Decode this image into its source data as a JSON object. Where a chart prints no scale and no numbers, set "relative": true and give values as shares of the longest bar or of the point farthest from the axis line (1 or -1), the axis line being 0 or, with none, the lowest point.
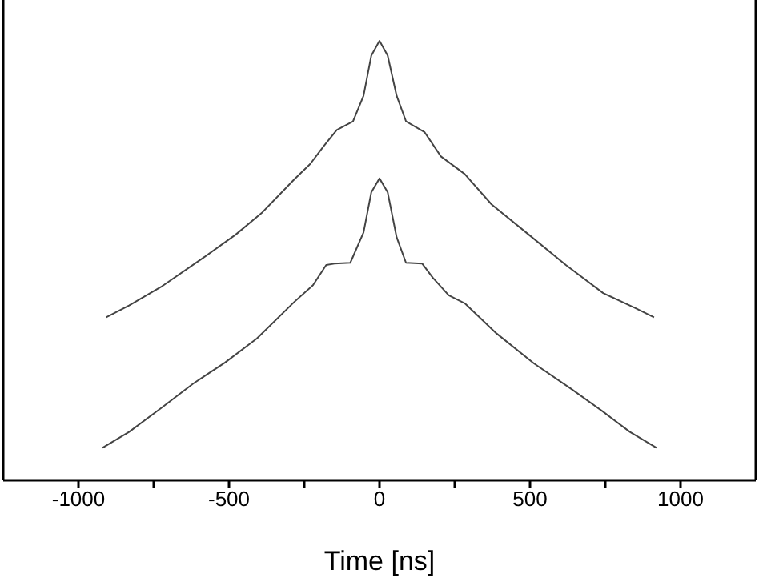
{
  "chart_data": {
    "type": "line",
    "xlabel": "Time [ns]",
    "relative": true,
    "xlim": [
      -1250,
      1250
    ],
    "xticks": [
      -1000,
      {
        "value": -750,
        "label": null
      },
      -500,
      {
        "value": -250,
        "label": null
      },
      0,
      {
        "value": 250,
        "label": null
      },
      500,
      {
        "value": 750,
        "label": null
      },
      1000
    ],
    "grid": false,
    "marker": "none",
    "line_style": "solid",
    "series": [
      {
        "color": "#444444",
        "x": [
          -908,
          -832,
          -726,
          -584,
          -478,
          -389,
          -283,
          -230,
          -186,
          -142,
          -88,
          -53,
          -27,
          0,
          27,
          57,
          88,
          150,
          204,
          283,
          372,
          496,
          619,
          743,
          850,
          912
        ],
        "values": [
          0.371,
          0.398,
          0.44,
          0.507,
          0.559,
          0.61,
          0.685,
          0.72,
          0.76,
          0.797,
          0.817,
          0.875,
          0.967,
          1,
          0.967,
          0.875,
          0.817,
          0.792,
          0.737,
          0.697,
          0.628,
          0.559,
          0.49,
          0.426,
          0.392,
          0.371
        ]
      },
      {
        "color": "#444444",
        "x": [
          -920,
          -832,
          -726,
          -619,
          -513,
          -407,
          -283,
          -221,
          -177,
          -150,
          -97,
          -53,
          -27,
          0,
          27,
          57,
          88,
          142,
          177,
          230,
          283,
          389,
          513,
          637,
          743,
          832,
          920
        ],
        "values": [
          0.074,
          0.11,
          0.164,
          0.22,
          0.268,
          0.323,
          0.406,
          0.444,
          0.49,
          0.493,
          0.495,
          0.564,
          0.656,
          0.687,
          0.656,
          0.553,
          0.495,
          0.493,
          0.461,
          0.421,
          0.403,
          0.334,
          0.266,
          0.208,
          0.156,
          0.11,
          0.074
        ]
      }
    ]
  }
}
